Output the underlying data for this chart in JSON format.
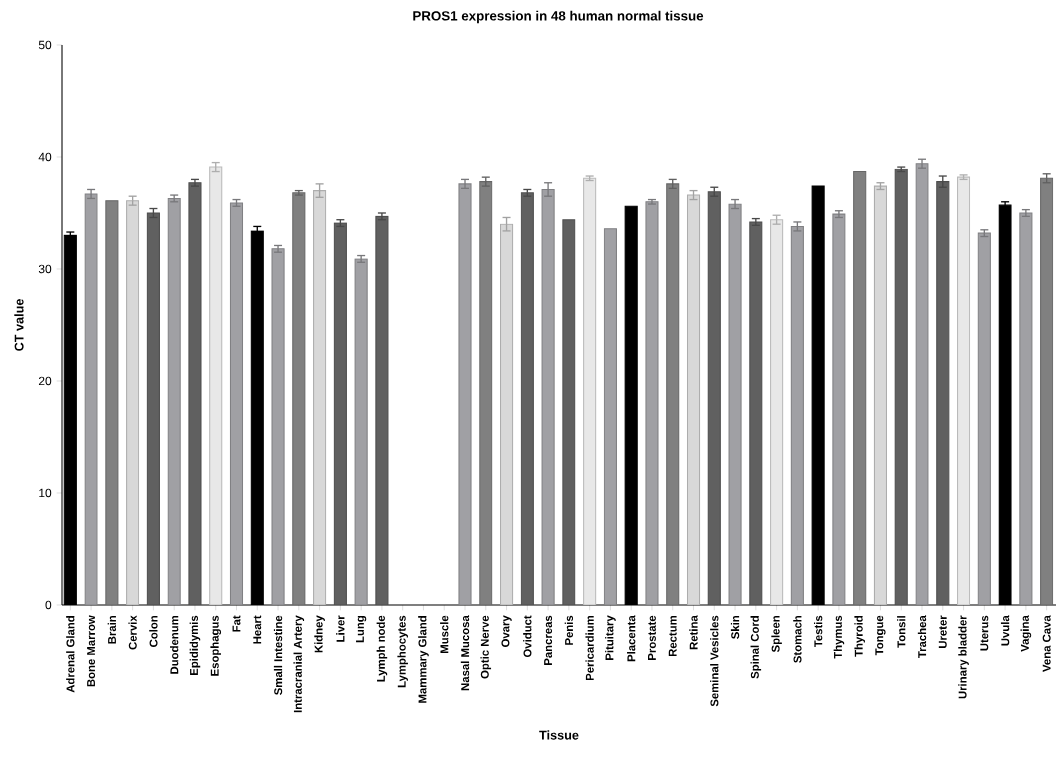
{
  "chart_data": {
    "type": "bar",
    "title": "PROS1 expression in 48 human normal tissue",
    "xlabel": "Tissue",
    "ylabel": "CT value",
    "categories": [
      "Adrenal Gland",
      "Bone Marrow",
      "Brain",
      "Cervix",
      "Colon",
      "Duodenum",
      "Epididymis",
      "Esophagus",
      "Fat",
      "Heart",
      "Small Intestine",
      "Intracranial Artery",
      "Kidney",
      "Liver",
      "Lung",
      "Lymph node",
      "Lymphocytes",
      "Mammary Gland",
      "Muscle",
      "Nasal Mucosa",
      "Optic Nerve",
      "Ovary",
      "Oviduct",
      "Pancreas",
      "Penis",
      "Pericardium",
      "Pituitary",
      "Placenta",
      "Prostate",
      "Rectum",
      "Retina",
      "Seminal Vesicles",
      "Skin",
      "Spinal Cord",
      "Spleen",
      "Stomach",
      "Testis",
      "Thymus",
      "Thyroid",
      "Tongue",
      "Tonsil",
      "Trachea",
      "Ureter",
      "Urinary bladder",
      "Uterus",
      "Uvula",
      "Vagina",
      "Vena Cava"
    ],
    "values": [
      33.0,
      36.7,
      36.1,
      36.1,
      35.0,
      36.3,
      37.7,
      39.1,
      35.9,
      33.4,
      31.8,
      36.8,
      37.0,
      34.1,
      30.9,
      34.7,
      null,
      null,
      null,
      37.6,
      37.8,
      34.0,
      36.8,
      37.1,
      34.4,
      38.1,
      33.6,
      35.6,
      36.0,
      37.6,
      36.6,
      36.9,
      35.8,
      34.2,
      34.4,
      33.8,
      37.4,
      34.9,
      38.7,
      37.4,
      38.9,
      39.4,
      37.8,
      38.2,
      33.2,
      35.7,
      35.0,
      38.1
    ],
    "errors": [
      0.3,
      0.4,
      null,
      0.4,
      0.4,
      0.3,
      0.3,
      0.4,
      0.3,
      0.4,
      0.3,
      0.2,
      0.6,
      0.3,
      0.3,
      0.3,
      null,
      null,
      null,
      0.4,
      0.4,
      0.6,
      0.3,
      0.6,
      null,
      0.2,
      null,
      null,
      0.2,
      0.4,
      0.4,
      0.4,
      0.4,
      0.3,
      0.4,
      0.4,
      null,
      0.3,
      null,
      0.3,
      0.2,
      0.4,
      0.5,
      0.2,
      0.3,
      0.3,
      0.3,
      0.4
    ],
    "colors": [
      "#000000",
      "#a0a0a4",
      "#808080",
      "#d8d8d8",
      "#606060",
      "#a0a0a4",
      "#606060",
      "#e8e8e8",
      "#a0a0a4",
      "#000000",
      "#a0a0a4",
      "#808080",
      "#d8d8d8",
      "#606060",
      "#a0a0a4",
      "#606060",
      "#a0a0a4",
      "#a0a0a4",
      "#a0a0a4",
      "#a0a0a4",
      "#808080",
      "#d8d8d8",
      "#606060",
      "#a0a0a4",
      "#606060",
      "#e8e8e8",
      "#a0a0a4",
      "#000000",
      "#a0a0a4",
      "#808080",
      "#d8d8d8",
      "#606060",
      "#a0a0a4",
      "#606060",
      "#e8e8e8",
      "#a0a0a4",
      "#000000",
      "#a0a0a4",
      "#808080",
      "#d8d8d8",
      "#606060",
      "#a0a0a4",
      "#606060",
      "#e8e8e8",
      "#a0a0a4",
      "#000000",
      "#a0a0a4",
      "#808080"
    ],
    "ylim": [
      0,
      50
    ],
    "yticks": [
      0,
      10,
      20,
      30,
      40,
      50
    ],
    "grid": false
  }
}
